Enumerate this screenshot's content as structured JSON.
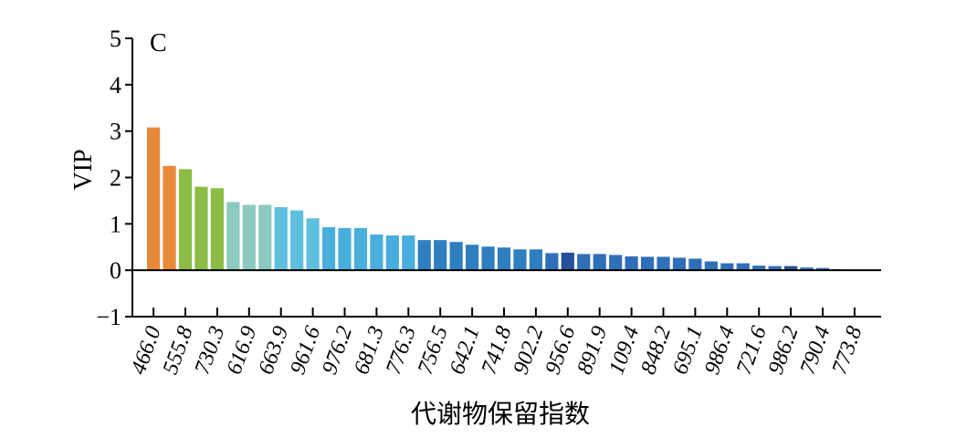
{
  "chart_data": {
    "type": "bar",
    "panel_label": "C",
    "xlabel": "代谢物保留指数",
    "ylabel": "VIP",
    "ylim": [
      -1,
      5
    ],
    "yticks": [
      "5",
      "4",
      "3",
      "2",
      "1",
      "0",
      "−1"
    ],
    "grid": false,
    "tick_labels": [
      "466.0",
      "555.8",
      "730.3",
      "616.9",
      "663.9",
      "961.6",
      "976.2",
      "681.3",
      "776.3",
      "756.5",
      "642.1",
      "741.8",
      "902.2",
      "956.6",
      "891.9",
      "109.4",
      "848.2",
      "695.1",
      "986.4",
      "721.6",
      "986.2",
      "790.4",
      "773.8"
    ],
    "values": [
      3.08,
      2.25,
      2.18,
      1.8,
      1.77,
      1.47,
      1.41,
      1.41,
      1.36,
      1.29,
      1.12,
      0.93,
      0.91,
      0.91,
      0.77,
      0.75,
      0.75,
      0.65,
      0.65,
      0.61,
      0.55,
      0.51,
      0.49,
      0.45,
      0.45,
      0.37,
      0.38,
      0.35,
      0.35,
      0.33,
      0.3,
      0.29,
      0.29,
      0.27,
      0.25,
      0.19,
      0.15,
      0.15,
      0.1,
      0.09,
      0.09,
      0.06,
      0.05,
      0.02,
      0.01,
      0.01
    ],
    "colors": [
      "#e8893a",
      "#e8893a",
      "#8cbc48",
      "#8cbc48",
      "#8cbc48",
      "#8cc9bf",
      "#8cc9bf",
      "#8cc9bf",
      "#5ec0de",
      "#5ec0de",
      "#5ec0de",
      "#4aaedc",
      "#4aaedc",
      "#4aaedc",
      "#4aaedc",
      "#4aaedc",
      "#4aaedc",
      "#2f7ec0",
      "#2f7ec0",
      "#2f7ec0",
      "#2f7ec0",
      "#2f7ec0",
      "#2f7ec0",
      "#2f7ec0",
      "#2f7ec0",
      "#2f6fb8",
      "#254f9a",
      "#2f6fb8",
      "#2f6fb8",
      "#2f6fb8",
      "#2f6fb8",
      "#2f6fb8",
      "#2f6fb8",
      "#2f6fb8",
      "#2f6fb8",
      "#2f6fb8",
      "#2f6fb8",
      "#2f6fb8",
      "#2f6fb8",
      "#2f6fb8",
      "#254f9a",
      "#2f6fb8",
      "#2f6fb8",
      "#2f6fb8",
      "#2f6fb8",
      "#2f6fb8"
    ]
  }
}
